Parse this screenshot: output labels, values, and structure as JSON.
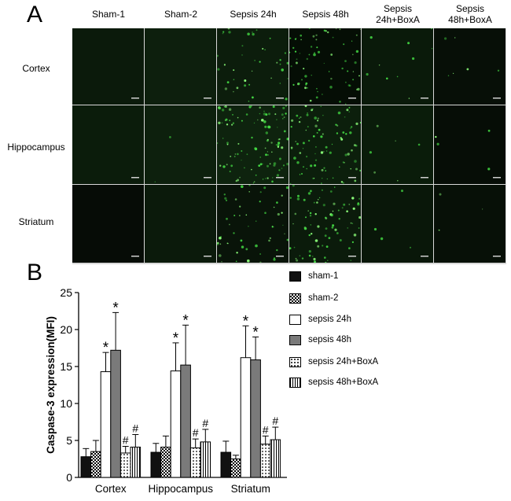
{
  "panel_a": {
    "letter": "A",
    "column_headers": [
      "Sham-1",
      "Sham-2",
      "Sepsis 24h",
      "Sepsis 48h",
      "Sepsis\n24h+BoxA",
      "Sepsis\n48h+BoxA"
    ],
    "row_labels": [
      "Cortex",
      "Hippocampus",
      "Striatum"
    ]
  },
  "panel_b": {
    "letter": "B"
  },
  "chart_data": {
    "type": "bar",
    "title": "",
    "xlabel": "",
    "ylabel": "Caspase-3 expression(MFI)",
    "ylim": [
      0,
      25
    ],
    "yticks": [
      0,
      5,
      10,
      15,
      20,
      25
    ],
    "categories": [
      "Cortex",
      "Hippocampus",
      "Striatum"
    ],
    "legend_position": "right",
    "series": [
      {
        "name": "sham-1",
        "fill": "black",
        "values": [
          2.8,
          3.4,
          3.4
        ],
        "errors": [
          1.1,
          1.2,
          1.5
        ],
        "annotations": [
          "",
          "",
          ""
        ]
      },
      {
        "name": "sham-2",
        "fill": "checker",
        "values": [
          3.5,
          4.1,
          2.5
        ],
        "errors": [
          1.5,
          1.5,
          0.5
        ],
        "annotations": [
          "",
          "",
          ""
        ]
      },
      {
        "name": "sepsis 24h",
        "fill": "white",
        "values": [
          14.3,
          14.4,
          16.2
        ],
        "errors": [
          2.6,
          3.8,
          4.3
        ],
        "annotations": [
          "*",
          "*",
          "*"
        ]
      },
      {
        "name": "sepsis 48h",
        "fill": "gray",
        "values": [
          17.2,
          15.2,
          15.9
        ],
        "errors": [
          5.1,
          5.4,
          3.1
        ],
        "annotations": [
          "*",
          "*",
          "*"
        ]
      },
      {
        "name": "sepsis 24h+BoxA",
        "fill": "dots",
        "values": [
          3.3,
          4.0,
          4.5
        ],
        "errors": [
          0.9,
          1.2,
          1.1
        ],
        "annotations": [
          "#",
          "#",
          "#"
        ]
      },
      {
        "name": "sepsis 48h+BoxA",
        "fill": "vlines",
        "values": [
          4.1,
          4.8,
          5.1
        ],
        "errors": [
          1.7,
          1.7,
          1.7
        ],
        "annotations": [
          "#",
          "#",
          "#"
        ]
      }
    ]
  }
}
